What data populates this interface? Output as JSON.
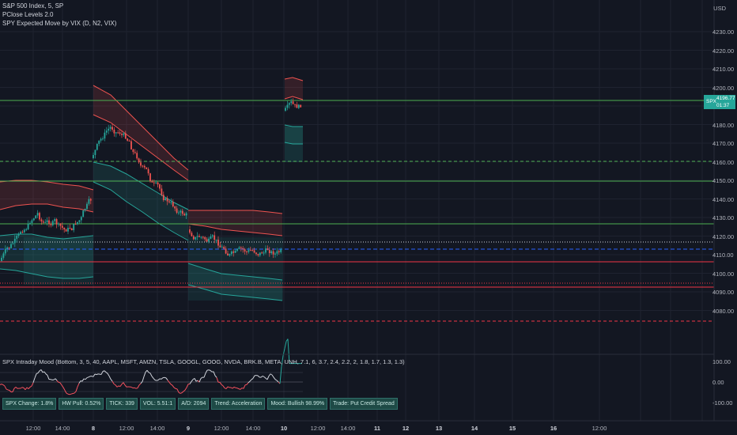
{
  "legend": {
    "symbol_line": "S&P 500 Index, 5, SP",
    "indicator1": "PClose Levels 2.0",
    "indicator2": "SPY Expected Move by VIX (D, N2, VIX)"
  },
  "currency": "USD",
  "price_axis": [
    "4230.00",
    "4220.00",
    "4210.00",
    "4200.00",
    "4190.00",
    "4180.00",
    "4170.00",
    "4160.00",
    "4150.00",
    "4140.00",
    "4130.00",
    "4120.00",
    "4110.00",
    "4100.00",
    "4090.00",
    "4080.00"
  ],
  "price_tag": {
    "symbol": "SPX",
    "value": "4196.77",
    "countdown": "01:37"
  },
  "osc_axis": [
    "100.00",
    "0.00",
    "-100.00"
  ],
  "time_axis": [
    {
      "label": "12:00",
      "bold": false
    },
    {
      "label": "14:00",
      "bold": false
    },
    {
      "label": "8",
      "bold": true
    },
    {
      "label": "12:00",
      "bold": false
    },
    {
      "label": "14:00",
      "bold": false
    },
    {
      "label": "9",
      "bold": true
    },
    {
      "label": "12:00",
      "bold": false
    },
    {
      "label": "14:00",
      "bold": false
    },
    {
      "label": "10",
      "bold": true
    },
    {
      "label": "12:00",
      "bold": false
    },
    {
      "label": "14:00",
      "bold": false
    },
    {
      "label": "11",
      "bold": true
    },
    {
      "label": "12",
      "bold": true
    },
    {
      "label": "13",
      "bold": true
    },
    {
      "label": "14",
      "bold": true
    },
    {
      "label": "15",
      "bold": true
    },
    {
      "label": "16",
      "bold": true
    },
    {
      "label": "12:00",
      "bold": false
    }
  ],
  "oscillator": {
    "title": "SPX Intraday Mood (Bottom, 3, 5, 40, AAPL, MSFT, AMZN, TSLA, GOOGL, GOOG, NVDA, BRK.B, META, UNH, 7.1, 6, 3.7, 2.4, 2.2, 2, 1.8, 1.7, 1.3, 1.3)"
  },
  "status_cells": [
    "SPX Change: 1.8%",
    "HW Pull: 0.52%",
    "TICK: 339",
    "VOL: 5.51:1",
    "A/D: 2094",
    "Trend: Acceleration",
    "Mood: Bullish 98.99%",
    "Trade: Put Credit Spread"
  ],
  "colors": {
    "background": "#131722",
    "bull": "#26a69a",
    "bear": "#ef5350",
    "level_green": "#4caf50",
    "level_red": "#f23645",
    "level_blue": "#2962ff",
    "level_white": "#d1d4dc"
  }
}
